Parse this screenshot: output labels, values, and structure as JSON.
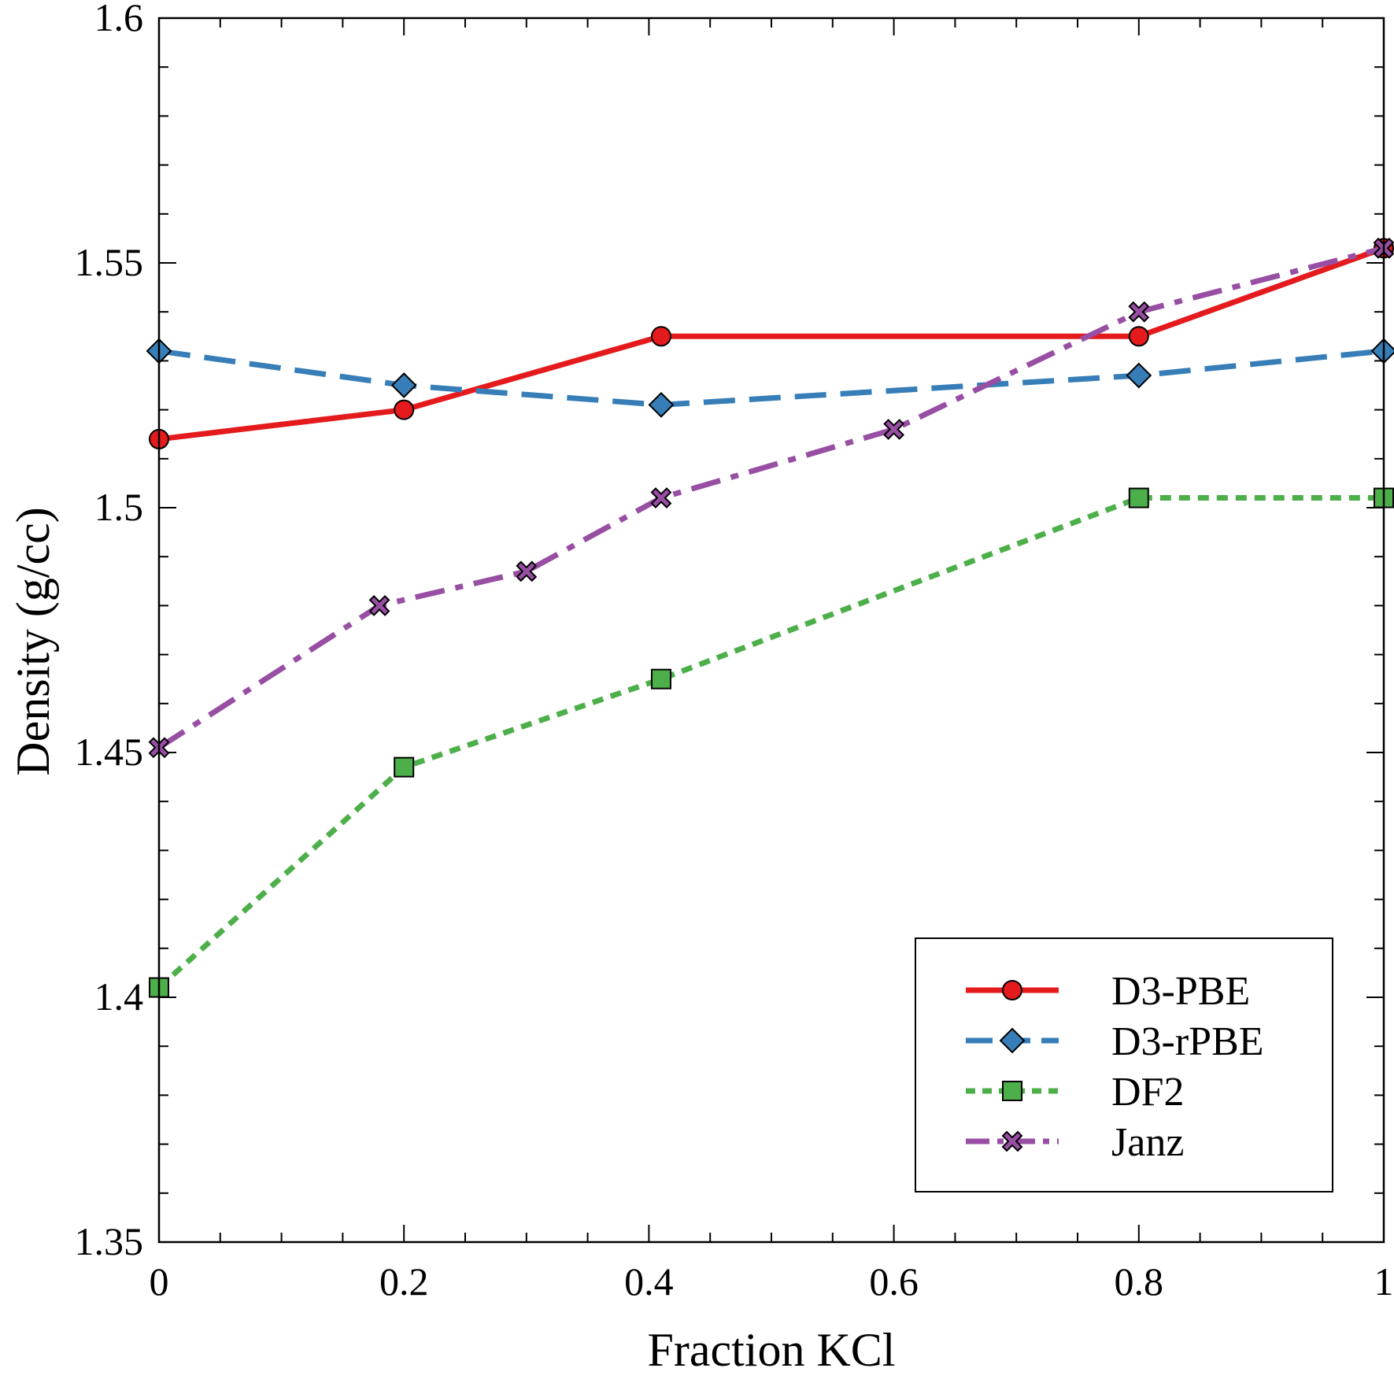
{
  "chart_data": {
    "type": "line",
    "xlabel": "Fraction KCl",
    "ylabel": "Density (g/cc)",
    "xlim": [
      0,
      1
    ],
    "ylim": [
      1.35,
      1.6
    ],
    "x_ticks": [
      "0",
      "0.2",
      "0.4",
      "0.6",
      "0.8",
      "1"
    ],
    "y_ticks": [
      "1.35",
      "1.4",
      "1.45",
      "1.5",
      "1.55",
      "1.6"
    ],
    "grid": false,
    "legend_position": "bottom-right",
    "series": [
      {
        "name": "D3-PBE",
        "color": "#e41a1c",
        "marker": "circle",
        "line_style": "solid",
        "x": [
          0,
          0.2,
          0.41,
          0.8,
          1.0
        ],
        "y": [
          1.514,
          1.52,
          1.535,
          1.535,
          1.553
        ]
      },
      {
        "name": "D3-rPBE",
        "color": "#377eb8",
        "marker": "diamond",
        "line_style": "dashed",
        "x": [
          0,
          0.2,
          0.41,
          0.8,
          1.0
        ],
        "y": [
          1.532,
          1.525,
          1.521,
          1.527,
          1.532
        ]
      },
      {
        "name": "DF2",
        "color": "#4daf4a",
        "marker": "square",
        "line_style": "dotted",
        "x": [
          0,
          0.2,
          0.41,
          0.8,
          1.0
        ],
        "y": [
          1.402,
          1.447,
          1.465,
          1.502,
          1.502
        ]
      },
      {
        "name": "Janz",
        "color": "#984ea3",
        "marker": "x",
        "line_style": "dashdot",
        "x": [
          0,
          0.18,
          0.3,
          0.41,
          0.6,
          0.8,
          1.0
        ],
        "y": [
          1.451,
          1.48,
          1.487,
          1.502,
          1.516,
          1.54,
          1.553
        ]
      }
    ]
  }
}
